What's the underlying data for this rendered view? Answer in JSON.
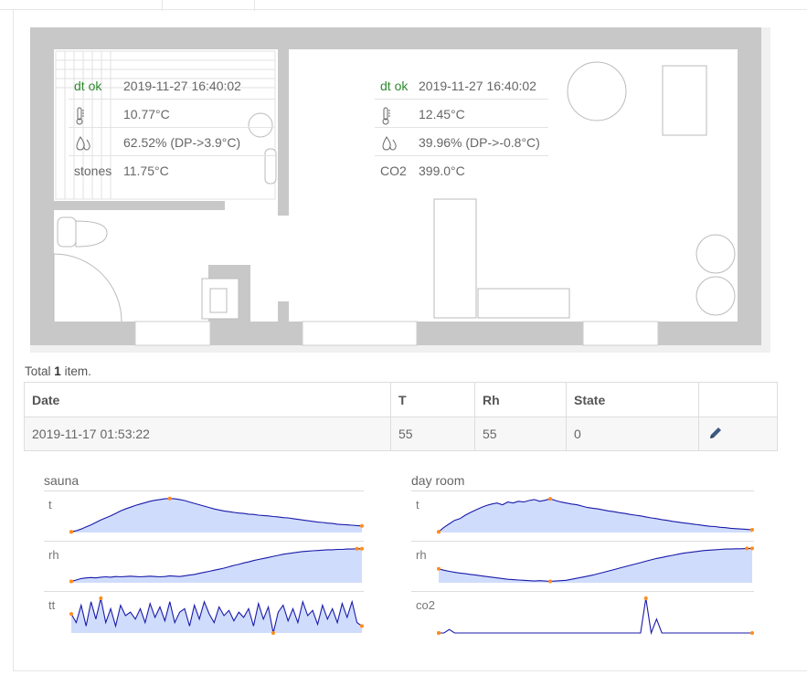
{
  "floorplan": {
    "sauna": {
      "status": "dt ok",
      "datetime": "2019-11-27 16:40:02",
      "temperature": "10.77°C",
      "humidity": "62.52% (DP->3.9°C)",
      "stones_label": "stones",
      "stones_value": "11.75°C"
    },
    "dayroom": {
      "status": "dt ok",
      "datetime": "2019-11-27 16:40:02",
      "temperature": "12.45°C",
      "humidity": "39.96% (DP->-0.8°C)",
      "co2_label": "CO2",
      "co2_value": "399.0°C"
    },
    "icons": {
      "temperature": "thermometer-icon",
      "humidity": "water-drops-icon"
    },
    "colors": {
      "wall": "#c8c8c8",
      "status_ok": "#2e8b2e"
    }
  },
  "summary": {
    "prefix": "Total",
    "count": "1",
    "suffix": "item."
  },
  "table": {
    "headers": [
      "Date",
      "T",
      "Rh",
      "State",
      ""
    ],
    "rows": [
      {
        "date": "2019-11-17 01:53:22",
        "t": "55",
        "rh": "55",
        "state": "0"
      }
    ],
    "edit_icon": "pencil-icon"
  },
  "sparklines": {
    "colors": {
      "line": "#1a1aaa",
      "fill": "#cfdcfb",
      "marker": "#ff8c1a"
    },
    "sauna": {
      "title": "sauna",
      "series": [
        {
          "label": "t",
          "fill": true,
          "values": [
            0.02,
            0.05,
            0.1,
            0.16,
            0.22,
            0.29,
            0.36,
            0.42,
            0.48,
            0.55,
            0.62,
            0.68,
            0.73,
            0.78,
            0.82,
            0.86,
            0.9,
            0.93,
            0.95,
            0.97,
            0.98,
            0.97,
            0.95,
            0.92,
            0.88,
            0.84,
            0.8,
            0.76,
            0.72,
            0.68,
            0.65,
            0.62,
            0.6,
            0.58,
            0.56,
            0.55,
            0.53,
            0.52,
            0.5,
            0.49,
            0.48,
            0.46,
            0.45,
            0.43,
            0.42,
            0.4,
            0.38,
            0.36,
            0.34,
            0.32,
            0.3,
            0.29,
            0.27,
            0.26,
            0.24,
            0.23,
            0.22,
            0.21,
            0.2,
            0.19
          ]
        },
        {
          "label": "rh",
          "fill": true,
          "values": [
            0.04,
            0.08,
            0.12,
            0.14,
            0.15,
            0.14,
            0.16,
            0.17,
            0.16,
            0.18,
            0.17,
            0.18,
            0.19,
            0.18,
            0.17,
            0.18,
            0.19,
            0.18,
            0.17,
            0.18,
            0.2,
            0.19,
            0.18,
            0.2,
            0.22,
            0.24,
            0.27,
            0.3,
            0.33,
            0.36,
            0.39,
            0.42,
            0.46,
            0.5,
            0.53,
            0.57,
            0.6,
            0.64,
            0.67,
            0.7,
            0.73,
            0.76,
            0.79,
            0.82,
            0.84,
            0.86,
            0.88,
            0.9,
            0.91,
            0.92,
            0.93,
            0.94,
            0.95,
            0.95,
            0.96,
            0.96,
            0.97,
            0.97,
            0.98,
            0.98
          ]
        },
        {
          "label": "tt",
          "fill": true,
          "values": [
            0.55,
            0.3,
            0.8,
            0.2,
            0.9,
            0.4,
            1.0,
            0.3,
            0.7,
            0.2,
            0.8,
            0.5,
            0.6,
            0.4,
            0.7,
            0.3,
            0.85,
            0.45,
            0.75,
            0.35,
            0.9,
            0.3,
            0.6,
            0.7,
            0.2,
            0.8,
            0.4,
            0.9,
            0.55,
            0.3,
            0.75,
            0.5,
            0.65,
            0.35,
            0.6,
            0.45,
            0.7,
            0.2,
            0.85,
            0.4,
            0.75,
            0.0,
            0.6,
            0.8,
            0.35,
            0.7,
            0.3,
            0.9,
            0.5,
            0.65,
            0.25,
            0.8,
            0.4,
            0.7,
            0.3,
            0.85,
            0.45,
            0.9,
            0.3,
            0.2
          ]
        }
      ]
    },
    "dayroom": {
      "title": "day room",
      "series": [
        {
          "label": "t",
          "fill": true,
          "values": [
            0.02,
            0.15,
            0.25,
            0.35,
            0.4,
            0.5,
            0.58,
            0.65,
            0.72,
            0.78,
            0.82,
            0.85,
            0.8,
            0.88,
            0.85,
            0.9,
            0.88,
            0.92,
            0.95,
            0.9,
            0.93,
            0.97,
            0.92,
            0.88,
            0.85,
            0.82,
            0.8,
            0.76,
            0.72,
            0.7,
            0.68,
            0.65,
            0.62,
            0.6,
            0.57,
            0.55,
            0.52,
            0.5,
            0.48,
            0.45,
            0.42,
            0.4,
            0.37,
            0.35,
            0.32,
            0.3,
            0.28,
            0.26,
            0.24,
            0.22,
            0.2,
            0.18,
            0.17,
            0.15,
            0.14,
            0.12,
            0.11,
            0.1,
            0.09,
            0.08
          ]
        },
        {
          "label": "rh",
          "fill": true,
          "values": [
            0.4,
            0.36,
            0.33,
            0.3,
            0.28,
            0.26,
            0.24,
            0.22,
            0.2,
            0.18,
            0.16,
            0.14,
            0.12,
            0.1,
            0.09,
            0.08,
            0.07,
            0.06,
            0.05,
            0.06,
            0.05,
            0.04,
            0.05,
            0.06,
            0.07,
            0.1,
            0.13,
            0.16,
            0.19,
            0.22,
            0.26,
            0.3,
            0.34,
            0.38,
            0.42,
            0.46,
            0.5,
            0.54,
            0.58,
            0.62,
            0.66,
            0.7,
            0.73,
            0.76,
            0.79,
            0.82,
            0.85,
            0.87,
            0.89,
            0.91,
            0.93,
            0.94,
            0.95,
            0.96,
            0.97,
            0.97,
            0.98,
            0.98,
            0.99,
            0.99
          ]
        },
        {
          "label": "co2",
          "fill": false,
          "values": [
            0.0,
            0.0,
            0.1,
            0.0,
            0.0,
            0.0,
            0.0,
            0.0,
            0.0,
            0.0,
            0.0,
            0.0,
            0.0,
            0.0,
            0.0,
            0.0,
            0.0,
            0.0,
            0.0,
            0.0,
            0.0,
            0.0,
            0.0,
            0.0,
            0.0,
            0.0,
            0.0,
            0.0,
            0.0,
            0.0,
            0.0,
            0.0,
            0.0,
            0.0,
            0.0,
            0.0,
            0.0,
            0.0,
            0.0,
            1.0,
            0.0,
            0.4,
            0.0,
            0.0,
            0.0,
            0.0,
            0.0,
            0.0,
            0.0,
            0.0,
            0.0,
            0.0,
            0.0,
            0.0,
            0.0,
            0.0,
            0.0,
            0.0,
            0.0,
            0.0
          ]
        }
      ]
    }
  }
}
